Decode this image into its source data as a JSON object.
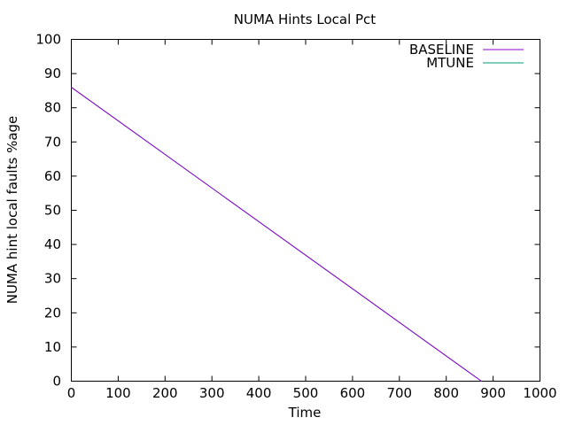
{
  "chart_data": {
    "type": "line",
    "title": "NUMA Hints Local Pct",
    "xlabel": "Time",
    "ylabel": "NUMA hint local faults %age",
    "xlim": [
      0,
      1000
    ],
    "ylim": [
      0,
      100
    ],
    "xticks": [
      0,
      100,
      200,
      300,
      400,
      500,
      600,
      700,
      800,
      900,
      1000
    ],
    "yticks": [
      0,
      10,
      20,
      30,
      40,
      50,
      60,
      70,
      80,
      90,
      100
    ],
    "grid": false,
    "legend_position": "top-right",
    "series": [
      {
        "name": "BASELINE",
        "color": "#9400d3",
        "x": [
          0,
          875
        ],
        "y": [
          86,
          0
        ]
      },
      {
        "name": "MTUNE",
        "color": "#009e73",
        "x": [
          0,
          875
        ],
        "y": [
          86,
          0
        ]
      }
    ]
  }
}
